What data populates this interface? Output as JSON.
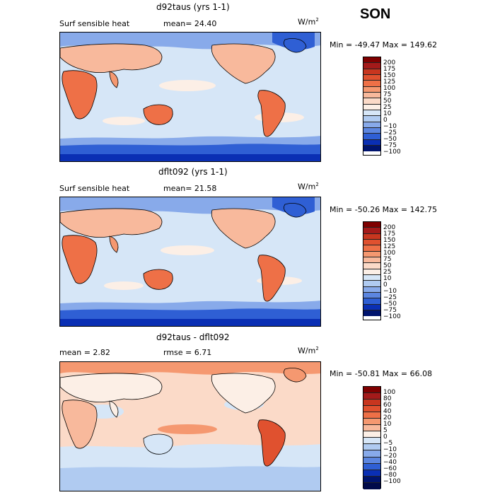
{
  "season": "SON",
  "panels": [
    {
      "title": "d92taus (yrs 1-1)",
      "variable": "Surf sensible heat",
      "stat1": "mean=  24.40",
      "stat2": "",
      "units": "W/m",
      "units_sup": "2",
      "minmax": "Min = -49.47  Max = 149.62",
      "levels": [
        "200",
        "175",
        "150",
        "125",
        "100",
        "75",
        "50",
        "25",
        "10",
        "0",
        "−10",
        "−25",
        "−50",
        "−75",
        "−100"
      ]
    },
    {
      "title": "dflt092 (yrs 1-1)",
      "variable": "Surf sensible heat",
      "stat1": "mean=  21.58",
      "stat2": "",
      "units": "W/m",
      "units_sup": "2",
      "minmax": "Min = -50.26  Max = 142.75",
      "levels": [
        "200",
        "175",
        "150",
        "125",
        "100",
        "75",
        "50",
        "25",
        "10",
        "0",
        "−10",
        "−25",
        "−50",
        "−75",
        "−100"
      ]
    },
    {
      "title": "d92taus - dflt092",
      "variable": "",
      "stat1": "mean =    2.82",
      "stat2": "rmse =    6.71",
      "units": "W/m",
      "units_sup": "2",
      "minmax": "Min = -50.81  Max =  66.08",
      "levels": [
        "100",
        "80",
        "60",
        "40",
        "20",
        "10",
        "5",
        "0",
        "−5",
        "−10",
        "−20",
        "−40",
        "−60",
        "−80",
        "−100"
      ]
    }
  ],
  "colors": {
    "scale": [
      "#7f0000",
      "#a41a1a",
      "#c8361f",
      "#e0512f",
      "#ee7047",
      "#f59870",
      "#f8b99c",
      "#fbdac8",
      "#fcefe6",
      "#d6e6f7",
      "#b0cbf1",
      "#88aaea",
      "#5c86e0",
      "#2f5fd4",
      "#0a2fb4",
      "#00146e"
    ],
    "ocean": "#d6e6f7",
    "ocean_cool": "#b0cbf1",
    "ocean_warm": "#fbdac8"
  }
}
